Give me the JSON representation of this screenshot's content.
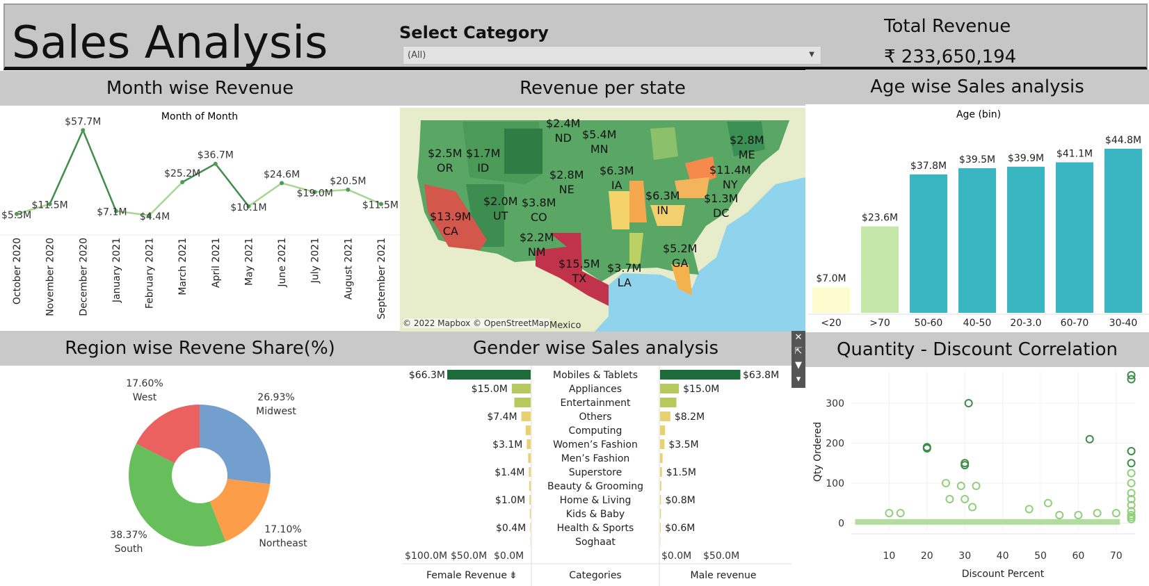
{
  "header": {
    "title": "Sales Analysis",
    "category_label": "Select Category",
    "category_value": "(All)",
    "revenue_label": "Total Revenue",
    "revenue_value": "₹ 233,650,194"
  },
  "panels": {
    "month_title": "Month wise Revenue",
    "state_title": "Revenue per state",
    "age_title": "Age wise Sales analysis",
    "region_title": "Region wise Revene Share(%)",
    "gender_title": "Gender wise Sales analysis",
    "qty_title": "Quantity - Discount Correlation"
  },
  "month_chart": {
    "type": "line",
    "header": "Month of Month",
    "months": [
      "October 2020",
      "November 2020",
      "December 2020",
      "January 2021",
      "February 2021",
      "March 2021",
      "April 2021",
      "May 2021",
      "June 2021",
      "July 2021",
      "August 2021",
      "September 2021"
    ],
    "values": [
      5.3,
      11.5,
      57.7,
      7.1,
      4.4,
      25.2,
      36.7,
      10.1,
      24.6,
      19.0,
      20.5,
      11.5
    ],
    "labels": [
      "$5.3M",
      "$11.5M",
      "$57.7M",
      "$7.1M",
      "$4.4M",
      "$25.2M",
      "$36.7M",
      "$10.1M",
      "$24.6M",
      "$19.0M",
      "$20.5M",
      "$11.5M"
    ],
    "color": "#4f9a55"
  },
  "state_map": {
    "credit": "© 2022 Mapbox © OpenStreetMap",
    "mexico": "Mexico",
    "states": [
      {
        "value": "$2.4M",
        "code": "ND"
      },
      {
        "value": "$5.4M",
        "code": "MN"
      },
      {
        "value": "$2.8M",
        "code": "ME"
      },
      {
        "value": "$2.5M",
        "code": "OR"
      },
      {
        "value": "$1.7M",
        "code": "ID"
      },
      {
        "value": "$11.4M",
        "code": "NY"
      },
      {
        "value": "$2.8M",
        "code": "NE"
      },
      {
        "value": "$6.3M",
        "code": "IA"
      },
      {
        "value": "$6.3M",
        "code": "IN"
      },
      {
        "value": "$2.0M",
        "code": "UT"
      },
      {
        "value": "$3.8M",
        "code": "CO"
      },
      {
        "value": "$1.3M",
        "code": "DC"
      },
      {
        "value": "$13.9M",
        "code": "CA"
      },
      {
        "value": "$2.2M",
        "code": "NM"
      },
      {
        "value": "$5.2M",
        "code": "GA"
      },
      {
        "value": "$15.5M",
        "code": "TX"
      },
      {
        "value": "$3.7M",
        "code": "LA"
      }
    ]
  },
  "age_chart": {
    "type": "bar",
    "header": "Age (bin)",
    "categories": [
      "<20",
      ">70",
      "50-60",
      "40-50",
      "20-3.0",
      "60-70",
      "30-40"
    ],
    "values": [
      7.0,
      23.6,
      37.8,
      39.5,
      39.9,
      41.1,
      44.8
    ],
    "labels": [
      "$7.0M",
      "$23.6M",
      "$37.8M",
      "$39.5M",
      "$39.9M",
      "$41.1M",
      "$44.8M"
    ],
    "colors": [
      "#fdfccf",
      "#c5e7a8",
      "#3ab6c3",
      "#3ab6c3",
      "#3ab6c3",
      "#3ab6c3",
      "#3ab6c3"
    ]
  },
  "region_chart": {
    "type": "pie",
    "slices": [
      {
        "name": "Midwest",
        "value": 26.93,
        "label": "26.93%",
        "color": "#739fce"
      },
      {
        "name": "Northeast",
        "value": 17.1,
        "label": "17.10%",
        "color": "#fc9d4a"
      },
      {
        "name": "South",
        "value": 38.37,
        "label": "38.37%",
        "color": "#67bf5c"
      },
      {
        "name": "West",
        "value": 17.6,
        "label": "17.60%",
        "color": "#ea6160"
      }
    ]
  },
  "gender_chart": {
    "type": "bar",
    "categories": [
      "Mobiles & Tablets",
      "Appliances",
      "Entertainment",
      "Others",
      "Computing",
      "Women's Fashion",
      "Men's Fashion",
      "Superstore",
      "Beauty & Grooming",
      "Home & Living",
      "Kids & Baby",
      "Health & Sports",
      "Soghaat"
    ],
    "female": [
      66.3,
      15.0,
      13.0,
      7.4,
      4.0,
      3.1,
      2.0,
      1.4,
      1.2,
      1.0,
      0.7,
      0.4,
      0.2
    ],
    "male": [
      63.8,
      15.0,
      13.0,
      8.2,
      4.0,
      3.5,
      2.0,
      1.5,
      1.0,
      0.8,
      0.7,
      0.6,
      0.2
    ],
    "female_labels": [
      "$66.3M",
      "$15.0M",
      "",
      "$7.4M",
      "",
      "$3.1M",
      "",
      "$1.4M",
      "",
      "$1.0M",
      "",
      "$0.4M",
      ""
    ],
    "male_labels": [
      "$63.8M",
      "$15.0M",
      "",
      "$8.2M",
      "",
      "$3.5M",
      "",
      "$1.5M",
      "",
      "$0.8M",
      "",
      "$0.6M",
      ""
    ],
    "female_axis": [
      "$100.0M",
      "$50.0M",
      "$0.0M"
    ],
    "male_axis": [
      "$0.0M",
      "$50.0M"
    ],
    "female_title": "Female Revenue",
    "categories_title": "Categories",
    "male_title": "Male revenue",
    "sort_icon": "sort-icon",
    "tool_icons": [
      "close-icon",
      "popout-icon",
      "filter-icon",
      "dropdown-icon"
    ]
  },
  "qty_chart": {
    "type": "scatter",
    "xlabel": "Discount Percent",
    "ylabel": "Qty Ordered",
    "xlim": [
      0,
      75
    ],
    "ylim": [
      -20,
      380
    ],
    "xticks": [
      "10",
      "20",
      "30",
      "40",
      "50",
      "60",
      "70"
    ],
    "yticks": [
      "0",
      "100",
      "200",
      "300"
    ],
    "points": [
      [
        20,
        187
      ],
      [
        20,
        190
      ],
      [
        31,
        300
      ],
      [
        30,
        145
      ],
      [
        30,
        150
      ],
      [
        63,
        210
      ],
      [
        74,
        370
      ],
      [
        74,
        360
      ],
      [
        74,
        180
      ],
      [
        74,
        150
      ],
      [
        74,
        125
      ],
      [
        74,
        100
      ],
      [
        74,
        75
      ],
      [
        74,
        60
      ],
      [
        74,
        45
      ],
      [
        74,
        30
      ],
      [
        74,
        20
      ],
      [
        74,
        15
      ],
      [
        74,
        10
      ],
      [
        25,
        100
      ],
      [
        33,
        93
      ],
      [
        29,
        93
      ],
      [
        26,
        60
      ],
      [
        30,
        60
      ],
      [
        52,
        50
      ],
      [
        32,
        40
      ],
      [
        10,
        25
      ],
      [
        13,
        25
      ],
      [
        47,
        35
      ],
      [
        55,
        20
      ],
      [
        60,
        20
      ],
      [
        65,
        25
      ],
      [
        70,
        25
      ]
    ]
  }
}
